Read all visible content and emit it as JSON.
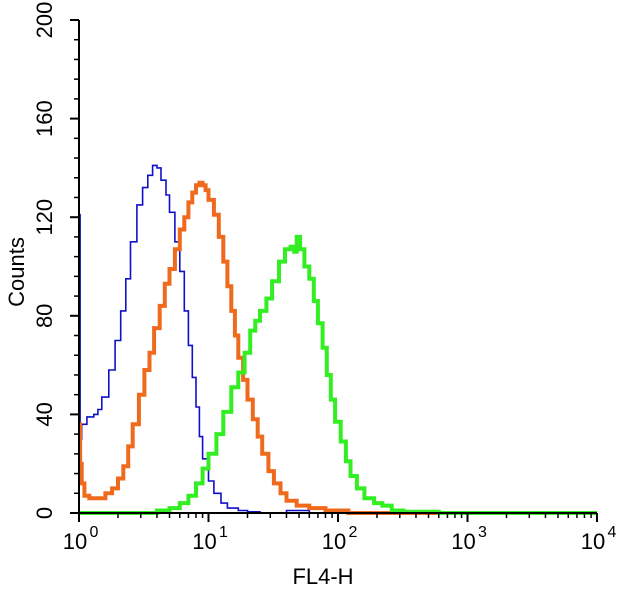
{
  "chart_data": {
    "type": "line",
    "title": "",
    "xlabel": "FL4-H",
    "ylabel": "Counts",
    "xscale": "log",
    "xlim": [
      1,
      10000
    ],
    "ylim": [
      0,
      200
    ],
    "grid": false,
    "x_ticks": [
      {
        "value": 1,
        "base": "10",
        "exp": "0"
      },
      {
        "value": 10,
        "base": "10",
        "exp": "1"
      },
      {
        "value": 100,
        "base": "10",
        "exp": "2"
      },
      {
        "value": 1000,
        "base": "10",
        "exp": "3"
      },
      {
        "value": 10000,
        "base": "10",
        "exp": "4"
      }
    ],
    "y_ticks": [
      {
        "value": 0,
        "label": "0"
      },
      {
        "value": 40,
        "label": "40"
      },
      {
        "value": 80,
        "label": "80"
      },
      {
        "value": 120,
        "label": "120"
      },
      {
        "value": 160,
        "label": "160"
      },
      {
        "value": 200,
        "label": "200"
      }
    ],
    "series": [
      {
        "color": "#1010c8",
        "line_width": 1.6,
        "points": [
          [
            1.0,
            121
          ],
          [
            1.02,
            30
          ],
          [
            1.05,
            36
          ],
          [
            1.15,
            39
          ],
          [
            1.3,
            40
          ],
          [
            1.4,
            42
          ],
          [
            1.5,
            47
          ],
          [
            1.7,
            58
          ],
          [
            1.9,
            70
          ],
          [
            2.1,
            82
          ],
          [
            2.3,
            95
          ],
          [
            2.5,
            110
          ],
          [
            2.8,
            125
          ],
          [
            3.1,
            132
          ],
          [
            3.4,
            137
          ],
          [
            3.7,
            141
          ],
          [
            4.0,
            140
          ],
          [
            4.3,
            135
          ],
          [
            4.7,
            129
          ],
          [
            5.0,
            122
          ],
          [
            5.5,
            110
          ],
          [
            6.0,
            98
          ],
          [
            6.5,
            82
          ],
          [
            7.0,
            68
          ],
          [
            7.5,
            55
          ],
          [
            8.0,
            43
          ],
          [
            8.5,
            31
          ],
          [
            9.0,
            22
          ],
          [
            10.0,
            13
          ],
          [
            11.0,
            8
          ],
          [
            12.5,
            4
          ],
          [
            14.0,
            2
          ],
          [
            17.0,
            1
          ],
          [
            20.0,
            0.5
          ],
          [
            25.0,
            0
          ],
          [
            40.0,
            1
          ],
          [
            60.0,
            0
          ],
          [
            10000,
            0
          ]
        ]
      },
      {
        "color": "#f06a1e",
        "line_width": 4,
        "points": [
          [
            1.0,
            36
          ],
          [
            1.02,
            20
          ],
          [
            1.05,
            12
          ],
          [
            1.1,
            7
          ],
          [
            1.2,
            6
          ],
          [
            1.4,
            6
          ],
          [
            1.6,
            8
          ],
          [
            1.8,
            10
          ],
          [
            2.0,
            14
          ],
          [
            2.2,
            19
          ],
          [
            2.4,
            27
          ],
          [
            2.6,
            36
          ],
          [
            2.9,
            48
          ],
          [
            3.2,
            58
          ],
          [
            3.5,
            65
          ],
          [
            3.8,
            75
          ],
          [
            4.2,
            84
          ],
          [
            4.6,
            93
          ],
          [
            5.0,
            99
          ],
          [
            5.5,
            107
          ],
          [
            6.0,
            115
          ],
          [
            6.5,
            120
          ],
          [
            7.0,
            126
          ],
          [
            7.5,
            130
          ],
          [
            8.0,
            133
          ],
          [
            8.5,
            134
          ],
          [
            9.0,
            133
          ],
          [
            9.5,
            131
          ],
          [
            10.0,
            127
          ],
          [
            11.0,
            121
          ],
          [
            12.0,
            112
          ],
          [
            13.0,
            102
          ],
          [
            14.0,
            92
          ],
          [
            15.0,
            82
          ],
          [
            16.0,
            72
          ],
          [
            17.0,
            63
          ],
          [
            18.5,
            54
          ],
          [
            20.0,
            46
          ],
          [
            22.0,
            38
          ],
          [
            24.0,
            31
          ],
          [
            26.0,
            24
          ],
          [
            29.0,
            17
          ],
          [
            32.0,
            12
          ],
          [
            36.0,
            8
          ],
          [
            40.0,
            5
          ],
          [
            48.0,
            3
          ],
          [
            60.0,
            2
          ],
          [
            80.0,
            1
          ],
          [
            120.0,
            0
          ],
          [
            10000,
            0
          ]
        ]
      },
      {
        "color": "#33ee22",
        "line_width": 4,
        "points": [
          [
            1.0,
            0
          ],
          [
            3.0,
            0
          ],
          [
            4.0,
            1
          ],
          [
            5.0,
            2
          ],
          [
            6.0,
            4
          ],
          [
            7.0,
            7
          ],
          [
            8.0,
            12
          ],
          [
            9.0,
            18
          ],
          [
            10.0,
            24
          ],
          [
            11.5,
            32
          ],
          [
            13.0,
            41
          ],
          [
            15.0,
            51
          ],
          [
            17.0,
            57
          ],
          [
            19.0,
            65
          ],
          [
            21.0,
            74
          ],
          [
            23.0,
            78
          ],
          [
            25.0,
            82
          ],
          [
            28.0,
            87
          ],
          [
            31.0,
            94
          ],
          [
            35.0,
            102
          ],
          [
            39.0,
            107
          ],
          [
            43.0,
            108
          ],
          [
            46.0,
            106
          ],
          [
            48.0,
            112
          ],
          [
            51.0,
            107
          ],
          [
            55.0,
            100
          ],
          [
            60.0,
            95
          ],
          [
            65.0,
            86
          ],
          [
            70.0,
            77
          ],
          [
            76.0,
            67
          ],
          [
            82.0,
            56
          ],
          [
            88.0,
            46
          ],
          [
            95.0,
            37
          ],
          [
            105.0,
            29
          ],
          [
            115.0,
            21
          ],
          [
            125.0,
            15
          ],
          [
            140.0,
            10
          ],
          [
            160.0,
            6
          ],
          [
            190.0,
            4
          ],
          [
            220.0,
            3
          ],
          [
            260.0,
            1
          ],
          [
            320.0,
            0.5
          ],
          [
            400.0,
            0.5
          ],
          [
            600.0,
            0
          ],
          [
            10000,
            0
          ]
        ]
      }
    ]
  }
}
